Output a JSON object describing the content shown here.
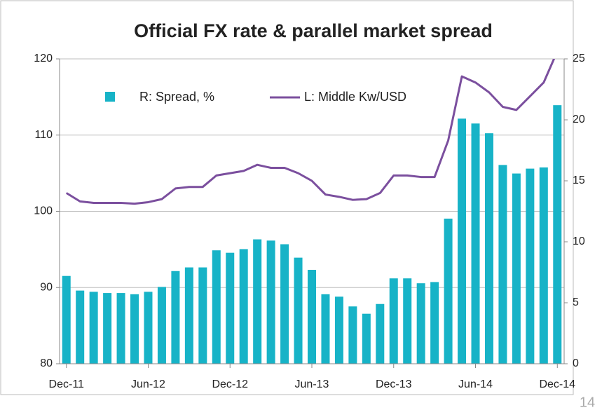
{
  "chart_data": {
    "type": "bar_line",
    "title": "Official FX rate & parallel market spread",
    "categories": [
      "Dec-11",
      null,
      null,
      null,
      null,
      null,
      "Jun-12",
      null,
      null,
      null,
      null,
      null,
      "Dec-12",
      null,
      null,
      null,
      null,
      null,
      "Jun-13",
      null,
      null,
      null,
      null,
      null,
      "Dec-13",
      null,
      null,
      null,
      null,
      null,
      "Jun-14",
      null,
      null,
      null,
      null,
      null,
      "Dec-14"
    ],
    "series": [
      {
        "name": "R: Spread, %",
        "color": "#17b3c7",
        "axis": "y2",
        "type": "bar",
        "values": [
          7.2,
          6.0,
          5.9,
          5.8,
          5.8,
          5.7,
          5.9,
          6.3,
          7.6,
          7.9,
          7.9,
          9.3,
          9.1,
          9.4,
          10.2,
          10.1,
          9.8,
          8.7,
          7.7,
          5.7,
          5.5,
          4.7,
          4.1,
          4.9,
          7.0,
          7.0,
          6.6,
          6.7,
          11.9,
          20.1,
          19.7,
          18.9,
          16.3,
          15.6,
          16.0,
          16.1,
          21.2
        ]
      },
      {
        "name": "L: Middle Kw/USD",
        "color": "#7b4f9e",
        "axis": "y",
        "type": "line",
        "values": [
          102.4,
          101.3,
          101.1,
          101.1,
          101.1,
          101.0,
          101.2,
          101.6,
          103.0,
          103.2,
          103.2,
          104.7,
          105.0,
          105.3,
          106.1,
          105.7,
          105.7,
          105.0,
          104.0,
          102.2,
          101.9,
          101.5,
          101.6,
          102.4,
          104.7,
          104.7,
          104.5,
          104.5,
          109.3,
          117.7,
          116.9,
          115.6,
          113.7,
          113.3,
          115.1,
          116.9,
          121.0
        ]
      }
    ],
    "ylim": [
      80,
      120
    ],
    "yticks": [
      80,
      90,
      100,
      110,
      120
    ],
    "y2lim": [
      0,
      25
    ],
    "y2ticks": [
      0,
      5,
      10,
      15,
      20,
      25
    ]
  },
  "page_number": "14"
}
